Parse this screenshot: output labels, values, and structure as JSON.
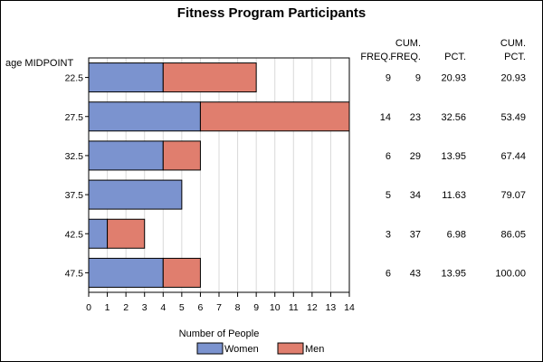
{
  "chart_data": {
    "type": "bar",
    "orientation": "horizontal",
    "stacked": true,
    "title": "Fitness Program Participants",
    "ylabel": "age MIDPOINT",
    "xlabel": "Number of People",
    "categories": [
      "22.5",
      "27.5",
      "32.5",
      "37.5",
      "42.5",
      "47.5"
    ],
    "series": [
      {
        "name": "Women",
        "color": "#7b93cf",
        "values": [
          4,
          6,
          4,
          5,
          1,
          4
        ]
      },
      {
        "name": "Men",
        "color": "#e07e6e",
        "values": [
          5,
          8,
          2,
          0,
          2,
          2
        ]
      }
    ],
    "xlim": [
      0,
      14
    ],
    "xticks": [
      "0",
      "1",
      "2",
      "3",
      "4",
      "5",
      "6",
      "7",
      "8",
      "9",
      "10",
      "11",
      "12",
      "13",
      "14"
    ],
    "grid": true,
    "legend_position": "bottom",
    "table": {
      "columns": [
        {
          "line1": "",
          "line2": "FREQ."
        },
        {
          "line1": "CUM.",
          "line2": "FREQ."
        },
        {
          "line1": "",
          "line2": "PCT."
        },
        {
          "line1": "CUM.",
          "line2": "PCT."
        }
      ],
      "rows": [
        [
          "9",
          "9",
          "20.93",
          "20.93"
        ],
        [
          "14",
          "23",
          "32.56",
          "53.49"
        ],
        [
          "6",
          "29",
          "13.95",
          "67.44"
        ],
        [
          "5",
          "34",
          "11.63",
          "79.07"
        ],
        [
          "3",
          "37",
          "6.98",
          "86.05"
        ],
        [
          "6",
          "43",
          "13.95",
          "100.00"
        ]
      ]
    }
  }
}
